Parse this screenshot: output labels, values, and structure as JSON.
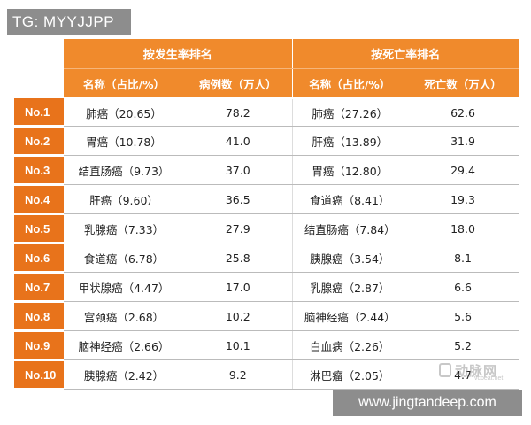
{
  "watermark_top": "TG: MYYJJPP",
  "watermark_bottom": "www.jingtandeep.com",
  "logo": {
    "text": "动脉网",
    "sub": "vcbeat.net"
  },
  "table": {
    "groups": [
      "按发生率排名",
      "按死亡率排名"
    ],
    "headers": [
      "名称（占比/%）",
      "病例数（万人）",
      "名称（占比/%）",
      "死亡数（万人）"
    ],
    "rows": [
      {
        "rank": "No.1",
        "inc_name": "肺癌（20.65）",
        "inc_cases": "78.2",
        "mort_name": "肺癌（27.26）",
        "mort_deaths": "62.6"
      },
      {
        "rank": "No.2",
        "inc_name": "胃癌（10.78）",
        "inc_cases": "41.0",
        "mort_name": "肝癌（13.89）",
        "mort_deaths": "31.9"
      },
      {
        "rank": "No.3",
        "inc_name": "结直肠癌（9.73）",
        "inc_cases": "37.0",
        "mort_name": "胃癌（12.80）",
        "mort_deaths": "29.4"
      },
      {
        "rank": "No.4",
        "inc_name": "肝癌（9.60）",
        "inc_cases": "36.5",
        "mort_name": "食道癌（8.41）",
        "mort_deaths": "19.3"
      },
      {
        "rank": "No.5",
        "inc_name": "乳腺癌（7.33）",
        "inc_cases": "27.9",
        "mort_name": "结直肠癌（7.84）",
        "mort_deaths": "18.0"
      },
      {
        "rank": "No.6",
        "inc_name": "食道癌（6.78）",
        "inc_cases": "25.8",
        "mort_name": "胰腺癌（3.54）",
        "mort_deaths": "8.1"
      },
      {
        "rank": "No.7",
        "inc_name": "甲状腺癌（4.47）",
        "inc_cases": "17.0",
        "mort_name": "乳腺癌（2.87）",
        "mort_deaths": "6.6"
      },
      {
        "rank": "No.8",
        "inc_name": "宫颈癌（2.68）",
        "inc_cases": "10.2",
        "mort_name": "脑神经癌（2.44）",
        "mort_deaths": "5.6"
      },
      {
        "rank": "No.9",
        "inc_name": "脑神经癌（2.66）",
        "inc_cases": "10.1",
        "mort_name": "白血病（2.26）",
        "mort_deaths": "5.2"
      },
      {
        "rank": "No.10",
        "inc_name": "胰腺癌（2.42）",
        "inc_cases": "9.2",
        "mort_name": "淋巴瘤（2.05）",
        "mort_deaths": "4.7"
      }
    ]
  }
}
